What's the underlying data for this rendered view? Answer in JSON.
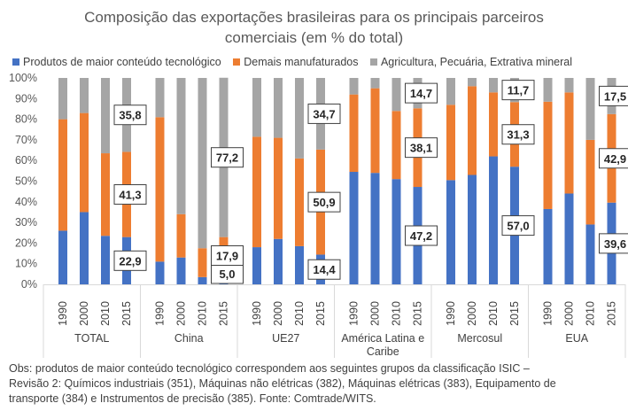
{
  "chart_data": {
    "type": "bar",
    "stacked": true,
    "title_line1": "Composição das exportações brasileiras para os principais parceiros",
    "title_line2": "comerciais (em % do total)",
    "colors": {
      "series0": "#4472c4",
      "series1": "#ed7d31",
      "series2": "#a5a5a5"
    },
    "ylim": [
      0,
      100
    ],
    "yticks": [
      "0%",
      "10%",
      "20%",
      "30%",
      "40%",
      "50%",
      "60%",
      "70%",
      "80%",
      "90%",
      "100%"
    ],
    "series": [
      {
        "name": "Produtos de maior conteúdo tecnológico"
      },
      {
        "name": "Demais manufaturados"
      },
      {
        "name": "Agricultura, Pecuária, Extrativa mineral"
      }
    ],
    "groups": [
      {
        "label": "TOTAL",
        "years": [
          "1990",
          "2000",
          "2010",
          "2015"
        ],
        "values": [
          [
            26,
            35,
            23.5,
            22.9
          ],
          [
            54,
            48,
            40,
            41.3
          ],
          [
            20,
            17,
            36.5,
            35.8
          ]
        ]
      },
      {
        "label": "China",
        "years": [
          "1990",
          "2000",
          "2010",
          "2015"
        ],
        "values": [
          [
            11,
            13,
            3.5,
            5.0
          ],
          [
            70,
            21,
            14,
            17.9
          ],
          [
            19,
            66,
            82.5,
            77.2
          ]
        ]
      },
      {
        "label": "UE27",
        "years": [
          "1990",
          "2000",
          "2010",
          "2015"
        ],
        "values": [
          [
            18,
            22,
            18.5,
            14.4
          ],
          [
            53.5,
            49,
            42.5,
            50.9
          ],
          [
            28.5,
            29,
            39,
            34.7
          ]
        ]
      },
      {
        "label": "América Latina e Caribe",
        "years": [
          "1990",
          "2000",
          "2010",
          "2015"
        ],
        "values": [
          [
            54.5,
            54,
            51,
            47.2
          ],
          [
            37.5,
            41,
            33,
            38.1
          ],
          [
            8,
            5,
            16,
            14.7
          ]
        ]
      },
      {
        "label": "Mercosul",
        "years": [
          "1990",
          "2000",
          "2010",
          "2015"
        ],
        "values": [
          [
            50.5,
            53,
            62,
            57.0
          ],
          [
            36.5,
            43,
            31,
            31.3
          ],
          [
            13,
            4,
            7,
            11.7
          ]
        ]
      },
      {
        "label": "EUA",
        "years": [
          "1990",
          "2000",
          "2010",
          "2015"
        ],
        "values": [
          [
            36.5,
            44,
            29,
            39.6
          ],
          [
            52,
            49,
            41,
            42.9
          ],
          [
            11.5,
            7,
            30,
            17.5
          ]
        ]
      }
    ],
    "data_labels": [
      {
        "group": 0,
        "year": 3,
        "series": 0,
        "text": "22,9"
      },
      {
        "group": 0,
        "year": 3,
        "series": 1,
        "text": "41,3"
      },
      {
        "group": 0,
        "year": 3,
        "series": 2,
        "text": "35,8"
      },
      {
        "group": 1,
        "year": 3,
        "series": 0,
        "text": "5,0"
      },
      {
        "group": 1,
        "year": 3,
        "series": 1,
        "text": "17,9"
      },
      {
        "group": 1,
        "year": 3,
        "series": 2,
        "text": "77,2"
      },
      {
        "group": 2,
        "year": 3,
        "series": 0,
        "text": "14,4"
      },
      {
        "group": 2,
        "year": 3,
        "series": 1,
        "text": "50,9"
      },
      {
        "group": 2,
        "year": 3,
        "series": 2,
        "text": "34,7"
      },
      {
        "group": 3,
        "year": 3,
        "series": 0,
        "text": "47,2"
      },
      {
        "group": 3,
        "year": 3,
        "series": 1,
        "text": "38,1"
      },
      {
        "group": 3,
        "year": 3,
        "series": 2,
        "text": "14,7"
      },
      {
        "group": 4,
        "year": 3,
        "series": 0,
        "text": "57,0"
      },
      {
        "group": 4,
        "year": 3,
        "series": 1,
        "text": "31,3"
      },
      {
        "group": 4,
        "year": 3,
        "series": 2,
        "text": "11,7"
      },
      {
        "group": 5,
        "year": 3,
        "series": 0,
        "text": "39,6"
      },
      {
        "group": 5,
        "year": 3,
        "series": 1,
        "text": "42,9"
      },
      {
        "group": 5,
        "year": 3,
        "series": 2,
        "text": "17,5"
      }
    ]
  },
  "note": {
    "line1": "Obs: produtos de maior conteúdo tecnológico correspondem aos seguintes grupos da classificação ISIC –",
    "line2": "Revisão 2: Químicos industriais (351), Máquinas não elétricas (382), Máquinas elétricas (383), Equipamento de",
    "line3": "transporte (384) e Instrumentos de precisão (385). Fonte: Comtrade/WITS."
  }
}
